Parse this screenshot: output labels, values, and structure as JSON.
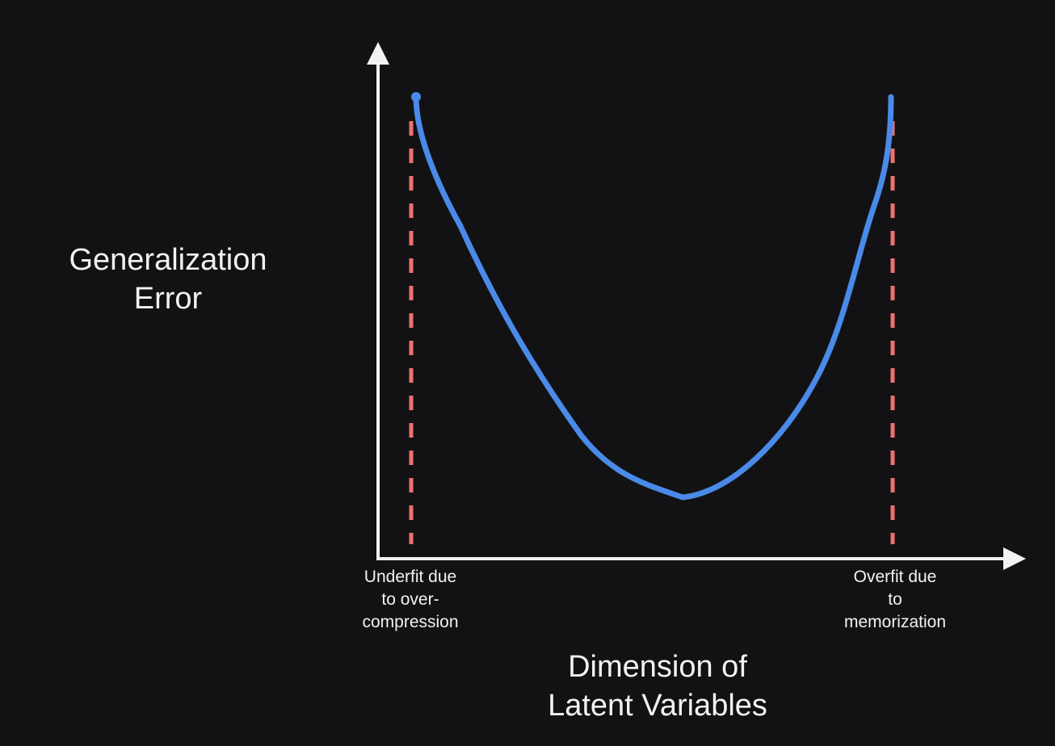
{
  "diagram": {
    "y_axis_label": "Generalization\nError",
    "x_axis_label": "Dimension of\nLatent Variables",
    "annotations": {
      "left": "Underfit due\nto over-\ncompression",
      "right": "Overfit due\nto\nmemorization"
    },
    "colors": {
      "background": "#121214",
      "axes": "#f2f2f2",
      "curve": "#4a8ae8",
      "threshold_lines": "#f07070",
      "text": "#f2f2f2"
    },
    "curve_shape": "u-shaped"
  }
}
